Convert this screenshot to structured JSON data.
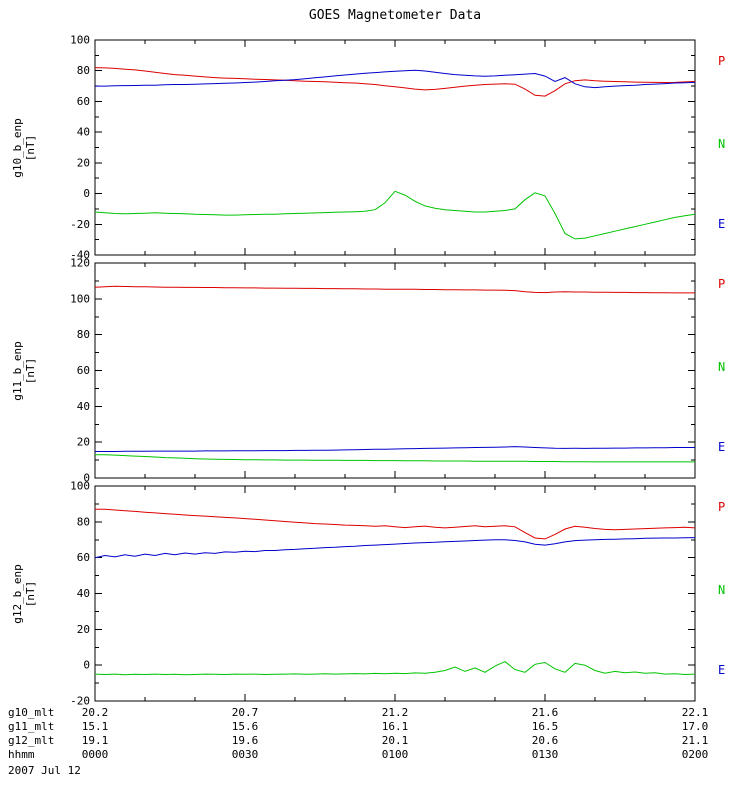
{
  "chart_data": {
    "type": "line",
    "title": "GOES Magnetometer Data",
    "date_label": "2007 Jul 12",
    "xlim": [
      0,
      120
    ],
    "xticks": [
      0,
      30,
      60,
      90,
      120
    ],
    "xminor": [
      10,
      20,
      40,
      50,
      70,
      80,
      100,
      110
    ],
    "x": [
      0,
      2,
      4,
      6,
      8,
      10,
      12,
      14,
      16,
      18,
      20,
      22,
      24,
      26,
      28,
      30,
      32,
      34,
      36,
      38,
      40,
      42,
      44,
      46,
      48,
      50,
      52,
      54,
      56,
      58,
      60,
      62,
      64,
      66,
      68,
      70,
      72,
      74,
      76,
      78,
      80,
      82,
      84,
      86,
      88,
      90,
      92,
      94,
      96,
      98,
      100,
      102,
      104,
      106,
      108,
      110,
      112,
      114,
      116,
      118,
      120
    ],
    "colors": {
      "P": "#dd0000",
      "N": "#00c400",
      "E": "#0000cc"
    },
    "legend": {
      "p": "P",
      "n": "N",
      "e": "E"
    },
    "panels": [
      {
        "ylabel": "g10_b_enp",
        "units": "[nT]",
        "ylim": [
          -40,
          100
        ],
        "yticks": [
          -40,
          -20,
          0,
          20,
          40,
          60,
          80,
          100
        ],
        "yminor": [
          -30,
          -10,
          10,
          30,
          50,
          70,
          90
        ],
        "series": [
          {
            "name": "P",
            "values": [
              82,
              81.8,
              81.5,
              81,
              80.5,
              79.8,
              79,
              78.2,
              77.5,
              77,
              76.5,
              76,
              75.5,
              75.2,
              75,
              74.8,
              74.5,
              74.3,
              74,
              73.8,
              73.5,
              73.2,
              73,
              72.8,
              72.5,
              72.2,
              72,
              71.5,
              71,
              70.2,
              69.5,
              68.8,
              68,
              67.5,
              67.8,
              68.5,
              69.2,
              70,
              70.5,
              71,
              71.3,
              71.5,
              71.2,
              68,
              64,
              63.5,
              67,
              71.5,
              73.5,
              74,
              73.5,
              73.2,
              73,
              72.8,
              72.6,
              72.5,
              72.4,
              72.3,
              72.4,
              72.7,
              73
            ]
          },
          {
            "name": "N",
            "values": [
              -12,
              -12.5,
              -13,
              -13.2,
              -13,
              -12.8,
              -12.5,
              -12.8,
              -13,
              -13.2,
              -13.5,
              -13.6,
              -13.8,
              -14,
              -14,
              -13.8,
              -13.6,
              -13.5,
              -13.4,
              -13.2,
              -13,
              -12.8,
              -12.6,
              -12.4,
              -12.2,
              -12,
              -11.8,
              -11.5,
              -10.5,
              -6,
              1.5,
              -1,
              -5,
              -8,
              -9.5,
              -10.5,
              -11,
              -11.5,
              -12,
              -12,
              -11.5,
              -11,
              -10,
              -4,
              0.5,
              -1.5,
              -13,
              -26,
              -29.5,
              -29,
              -27.5,
              -26,
              -24.5,
              -23,
              -21.5,
              -20,
              -18.5,
              -17,
              -15.5,
              -14.5,
              -13.5
            ]
          },
          {
            "name": "E",
            "values": [
              70,
              70,
              70.2,
              70.3,
              70.4,
              70.5,
              70.6,
              70.8,
              71,
              71,
              71.2,
              71.4,
              71.6,
              71.8,
              72,
              72.3,
              72.6,
              73,
              73.4,
              73.8,
              74.2,
              74.8,
              75.4,
              76,
              76.6,
              77.2,
              77.8,
              78.3,
              78.8,
              79.2,
              79.6,
              80,
              80.3,
              79.8,
              79,
              78.2,
              77.5,
              77,
              76.6,
              76.4,
              76.6,
              77,
              77.4,
              77.8,
              78.2,
              76.5,
              73,
              75.5,
              71.5,
              69.5,
              69,
              69.5,
              70,
              70.3,
              70.6,
              71,
              71.3,
              71.6,
              72,
              72.2,
              72.4
            ]
          }
        ]
      },
      {
        "ylabel": "g11_b_enp",
        "units": "[nT]",
        "ylim": [
          0,
          120
        ],
        "yticks": [
          0,
          20,
          40,
          60,
          80,
          100,
          120
        ],
        "yminor": [
          10,
          30,
          50,
          70,
          90,
          110
        ],
        "series": [
          {
            "name": "P",
            "values": [
              106.5,
              106.8,
              107,
              106.9,
              106.8,
              106.7,
              106.6,
              106.5,
              106.5,
              106.4,
              106.4,
              106.3,
              106.3,
              106.2,
              106.2,
              106.1,
              106.1,
              106,
              106,
              105.9,
              105.9,
              105.8,
              105.8,
              105.7,
              105.7,
              105.6,
              105.6,
              105.5,
              105.5,
              105.4,
              105.4,
              105.3,
              105.3,
              105.2,
              105.2,
              105.1,
              105.1,
              105,
              105,
              104.9,
              104.9,
              104.8,
              104.6,
              104,
              103.6,
              103.5,
              103.8,
              103.9,
              103.8,
              103.8,
              103.7,
              103.7,
              103.6,
              103.6,
              103.5,
              103.5,
              103.4,
              103.4,
              103.3,
              103.3,
              103.3
            ]
          },
          {
            "name": "N",
            "values": [
              13,
              13,
              12.8,
              12.5,
              12.2,
              12,
              11.7,
              11.4,
              11.2,
              11,
              10.8,
              10.6,
              10.5,
              10.4,
              10.3,
              10.2,
              10.2,
              10.1,
              10.1,
              10,
              10,
              10,
              9.9,
              9.9,
              9.9,
              9.8,
              9.8,
              9.8,
              9.7,
              9.7,
              9.7,
              9.6,
              9.6,
              9.6,
              9.5,
              9.5,
              9.5,
              9.5,
              9.4,
              9.4,
              9.4,
              9.3,
              9.3,
              9.3,
              9.2,
              9.2,
              9.2,
              9.1,
              9.1,
              9.1,
              9,
              9,
              9,
              9,
              9,
              9,
              9,
              9,
              9,
              9,
              9
            ]
          },
          {
            "name": "E",
            "values": [
              14.8,
              14.8,
              14.8,
              14.9,
              14.9,
              14.9,
              15,
              15,
              15,
              15,
              15,
              15.1,
              15.1,
              15.1,
              15.2,
              15.2,
              15.2,
              15.3,
              15.3,
              15.3,
              15.4,
              15.4,
              15.5,
              15.5,
              15.6,
              15.7,
              15.8,
              15.9,
              16,
              16.1,
              16.2,
              16.3,
              16.4,
              16.5,
              16.6,
              16.7,
              16.8,
              16.9,
              17,
              17.1,
              17.2,
              17.3,
              17.5,
              17.3,
              17,
              16.8,
              16.6,
              16.5,
              16.6,
              16.5,
              16.6,
              16.6,
              16.7,
              16.7,
              16.8,
              16.8,
              16.9,
              16.9,
              17,
              17,
              17
            ]
          }
        ]
      },
      {
        "ylabel": "g12_b_enp",
        "units": "[nT]",
        "ylim": [
          -20,
          100
        ],
        "yticks": [
          -20,
          0,
          20,
          40,
          60,
          80,
          100
        ],
        "yminor": [
          -10,
          10,
          30,
          50,
          70,
          90
        ],
        "series": [
          {
            "name": "P",
            "values": [
              87,
              87,
              86.6,
              86.2,
              85.8,
              85.4,
              85,
              84.6,
              84.2,
              83.8,
              83.5,
              83.2,
              82.8,
              82.5,
              82.2,
              81.8,
              81.4,
              81,
              80.6,
              80.2,
              79.8,
              79.4,
              79,
              78.8,
              78.5,
              78.2,
              78,
              77.8,
              77.5,
              77.8,
              77.3,
              76.8,
              77.2,
              77.6,
              77,
              76.6,
              77,
              77.4,
              77.8,
              77.2,
              77.5,
              77.8,
              77.2,
              74,
              71,
              70.5,
              73,
              76,
              77.5,
              77,
              76.3,
              75.8,
              75.6,
              75.8,
              76,
              76.2,
              76.4,
              76.6,
              76.8,
              77,
              76.6
            ]
          },
          {
            "name": "N",
            "values": [
              -5,
              -5.2,
              -5,
              -5.3,
              -5.1,
              -5.2,
              -5,
              -5.2,
              -5.1,
              -5.3,
              -5.2,
              -5,
              -5.1,
              -5.2,
              -5,
              -5.1,
              -5,
              -5.2,
              -5.1,
              -5,
              -4.9,
              -5.1,
              -5,
              -4.8,
              -5,
              -4.9,
              -4.7,
              -4.9,
              -4.6,
              -4.8,
              -4.5,
              -4.7,
              -4.3,
              -4.5,
              -4,
              -3,
              -1,
              -3.5,
              -1.5,
              -4,
              -0.5,
              2,
              -2.5,
              -4,
              0.5,
              1.5,
              -2,
              -4,
              1,
              0,
              -3,
              -4.5,
              -3.5,
              -4.2,
              -3.8,
              -4.5,
              -4.2,
              -5,
              -4.8,
              -5.2,
              -5
            ]
          },
          {
            "name": "E",
            "values": [
              60,
              61.2,
              60.4,
              61.6,
              60.8,
              62,
              61.2,
              62.4,
              61.6,
              62.6,
              62,
              62.8,
              62.4,
              63.2,
              63,
              63.6,
              63.4,
              64,
              64,
              64.4,
              64.6,
              65,
              65.2,
              65.6,
              65.8,
              66.2,
              66.4,
              66.8,
              67,
              67.3,
              67.6,
              67.9,
              68.2,
              68.4,
              68.6,
              68.9,
              69.1,
              69.3,
              69.6,
              69.8,
              70,
              70,
              69.6,
              68.8,
              67.5,
              67,
              67.8,
              68.8,
              69.5,
              69.8,
              70,
              70.2,
              70.3,
              70.5,
              70.6,
              70.8,
              70.9,
              71,
              71,
              71.1,
              71.2
            ]
          }
        ]
      }
    ],
    "bottom_axis": {
      "rows": [
        {
          "label": "g10_mlt",
          "values": [
            "20.2",
            "20.7",
            "21.2",
            "21.6",
            "22.1"
          ]
        },
        {
          "label": "g11_mlt",
          "values": [
            "15.1",
            "15.6",
            "16.1",
            "16.5",
            "17.0"
          ]
        },
        {
          "label": "g12_mlt",
          "values": [
            "19.1",
            "19.6",
            "20.1",
            "20.6",
            "21.1"
          ]
        },
        {
          "label": "hhmm",
          "values": [
            "0000",
            "0030",
            "0100",
            "0130",
            "0200"
          ]
        }
      ]
    }
  }
}
